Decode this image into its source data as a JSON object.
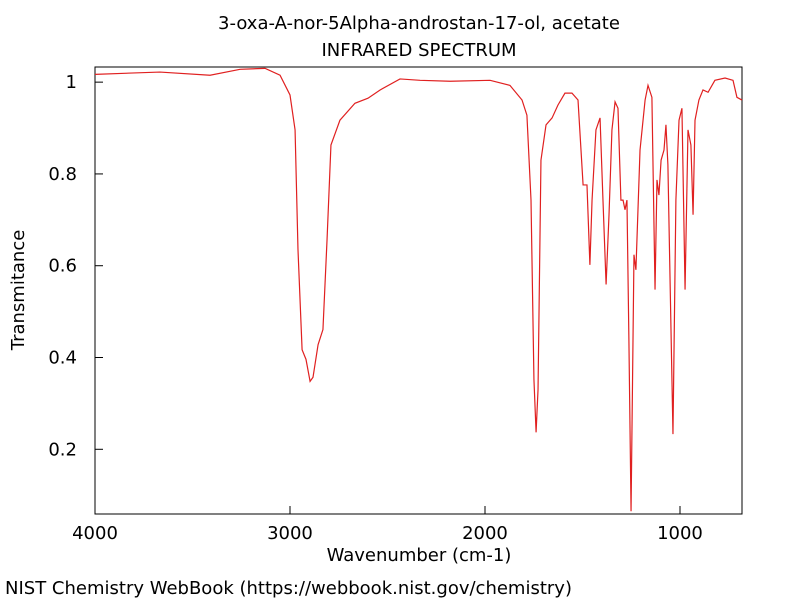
{
  "chart_data": {
    "type": "line",
    "title": "3-oxa-A-nor-5Alpha-androstan-17-ol, acetate",
    "subtitle": "INFRARED SPECTRUM",
    "x_label": "Wavenumber (cm-1)",
    "y_label": "Transmitance",
    "color": "#e02020",
    "xlim": [
      4000,
      682
    ],
    "ylim": [
      0.059,
      1.033
    ],
    "xticks": [
      4000,
      3000,
      2000,
      1000
    ],
    "yticks": [
      0.2,
      0.4,
      0.6,
      0.8,
      1
    ],
    "x": [
      4000,
      3667,
      3410,
      3256,
      3128,
      3051,
      3000,
      2974,
      2959,
      2938,
      2918,
      2897,
      2882,
      2856,
      2831,
      2810,
      2790,
      2744,
      2667,
      2600,
      2538,
      2436,
      2333,
      2179,
      1974,
      1872,
      1810,
      1785,
      1764,
      1749,
      1738,
      1728,
      1713,
      1687,
      1656,
      1626,
      1590,
      1554,
      1523,
      1497,
      1477,
      1462,
      1451,
      1431,
      1410,
      1395,
      1379,
      1364,
      1349,
      1333,
      1318,
      1303,
      1292,
      1282,
      1272,
      1262,
      1251,
      1236,
      1226,
      1205,
      1179,
      1164,
      1144,
      1128,
      1118,
      1108,
      1097,
      1082,
      1072,
      1062,
      1051,
      1036,
      1021,
      1005,
      990,
      974,
      959,
      944,
      933,
      923,
      903,
      882,
      856,
      821,
      769,
      728,
      708,
      682
    ],
    "values": [
      1.017,
      1.022,
      1.015,
      1.028,
      1.03,
      1.015,
      0.972,
      0.896,
      0.635,
      0.417,
      0.396,
      0.348,
      0.357,
      0.428,
      0.461,
      0.657,
      0.863,
      0.917,
      0.954,
      0.965,
      0.983,
      1.007,
      1.004,
      1.002,
      1.004,
      0.993,
      0.961,
      0.928,
      0.743,
      0.352,
      0.237,
      0.33,
      0.83,
      0.907,
      0.922,
      0.95,
      0.976,
      0.976,
      0.961,
      0.776,
      0.776,
      0.602,
      0.743,
      0.896,
      0.922,
      0.743,
      0.559,
      0.711,
      0.896,
      0.957,
      0.943,
      0.743,
      0.743,
      0.722,
      0.743,
      0.439,
      0.065,
      0.624,
      0.591,
      0.852,
      0.961,
      0.993,
      0.967,
      0.548,
      0.787,
      0.754,
      0.83,
      0.852,
      0.907,
      0.82,
      0.57,
      0.233,
      0.743,
      0.917,
      0.943,
      0.548,
      0.896,
      0.863,
      0.711,
      0.917,
      0.961,
      0.983,
      0.978,
      1.004,
      1.009,
      1.004,
      0.967,
      0.961
    ]
  },
  "footer": "NIST Chemistry WebBook (https://webbook.nist.gov/chemistry)"
}
